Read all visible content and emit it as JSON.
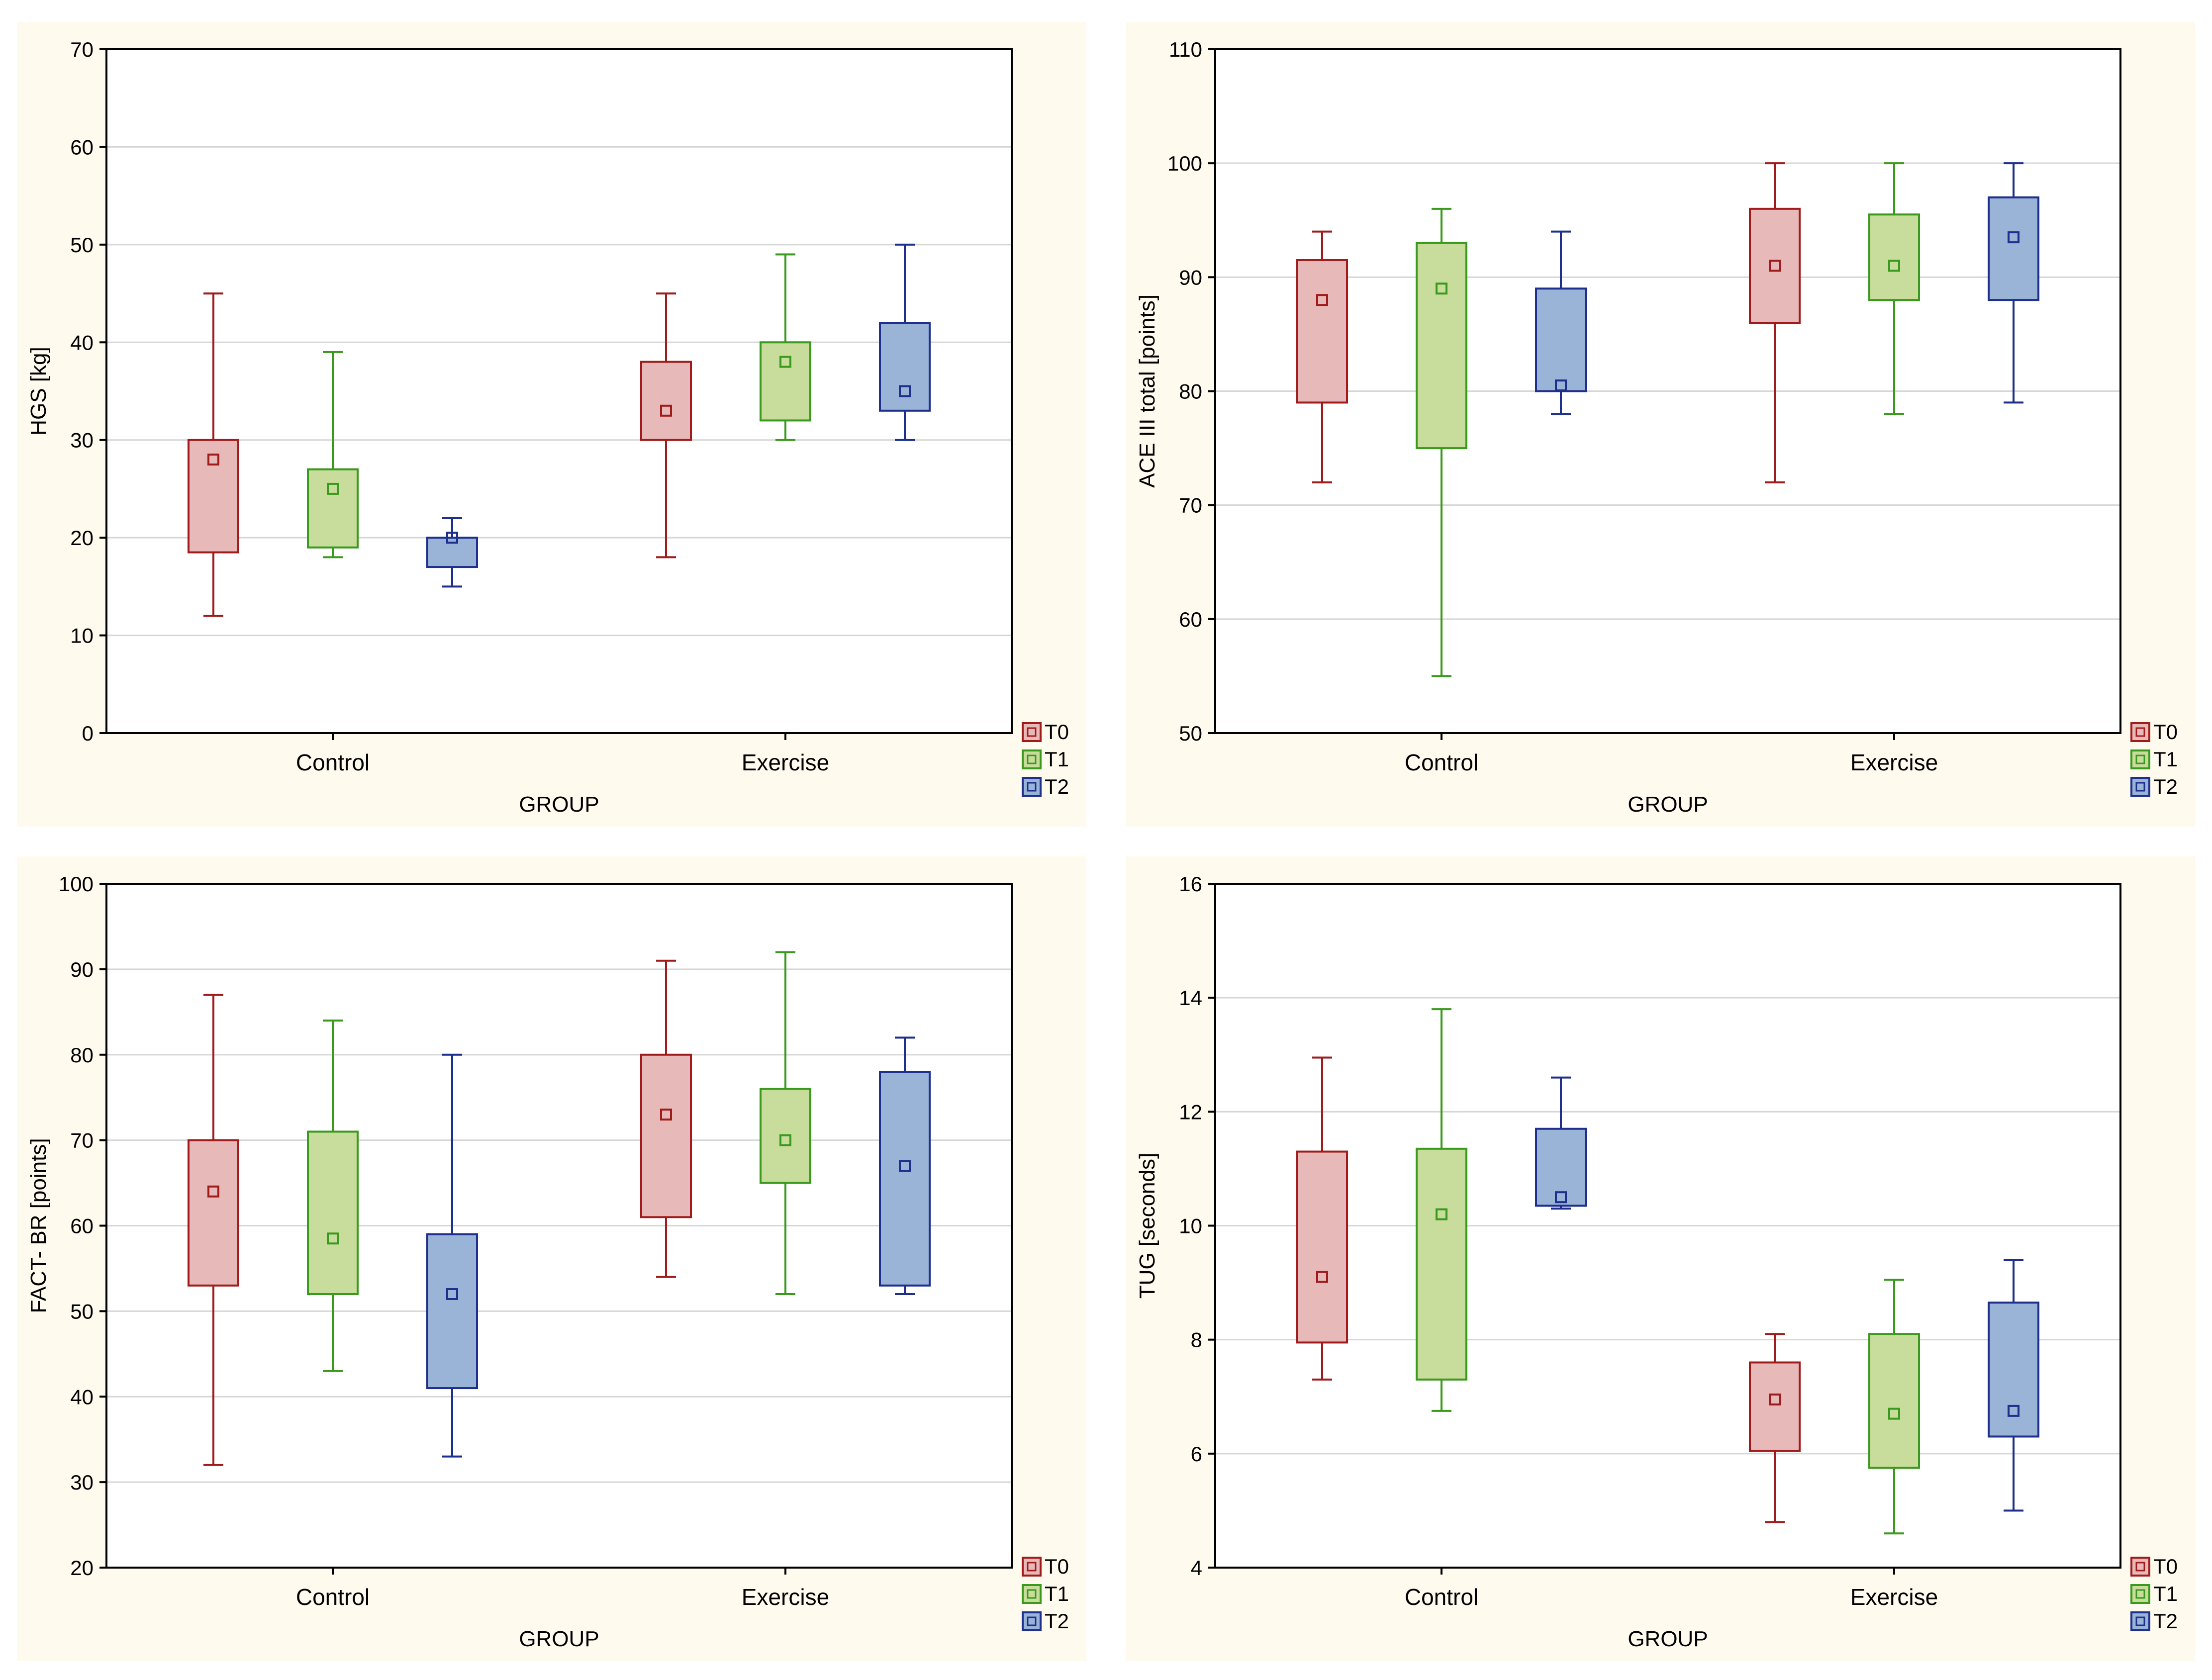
{
  "chart_data": [
    {
      "type": "box",
      "ylabel": "HGS [kg]",
      "xlabel": "GROUP",
      "categories": [
        "Control",
        "Exercise"
      ],
      "ylim": [
        0,
        70
      ],
      "yticks": [
        0,
        10,
        20,
        30,
        40,
        50,
        60,
        70
      ],
      "tick_labels": [
        "0",
        "10",
        "20",
        "30",
        "40",
        "50",
        "60",
        "70"
      ],
      "grid": true,
      "legend": "bottom-right",
      "series": [
        {
          "name": "T0",
          "color": "#a01c1c",
          "fill": "#e8b9b9",
          "boxes": [
            {
              "min": 12,
              "q1": 18.5,
              "median": 28,
              "q3": 30,
              "max": 45
            },
            {
              "min": 18,
              "q1": 30,
              "median": 33,
              "q3": 38,
              "max": 45
            }
          ]
        },
        {
          "name": "T1",
          "color": "#3a9a1e",
          "fill": "#c8dc9c",
          "boxes": [
            {
              "min": 18,
              "q1": 19,
              "median": 25,
              "q3": 27,
              "max": 39
            },
            {
              "min": 30,
              "q1": 32,
              "median": 38,
              "q3": 40,
              "max": 49
            }
          ]
        },
        {
          "name": "T2",
          "color": "#1e2f8c",
          "fill": "#9ab4d8",
          "boxes": [
            {
              "min": 15,
              "q1": 17,
              "median": 20,
              "q3": 20,
              "max": 22
            },
            {
              "min": 30,
              "q1": 33,
              "median": 35,
              "q3": 42,
              "max": 50
            }
          ]
        }
      ]
    },
    {
      "type": "box",
      "ylabel": "ACE III total [points]",
      "xlabel": "GROUP",
      "categories": [
        "Control",
        "Exercise"
      ],
      "ylim": [
        50,
        110
      ],
      "yticks": [
        50,
        60,
        70,
        80,
        90,
        100,
        110
      ],
      "tick_labels": [
        "50",
        "60",
        "70",
        "80",
        "90",
        "100",
        "110"
      ],
      "grid": true,
      "legend": "bottom-right",
      "series": [
        {
          "name": "T0",
          "color": "#a01c1c",
          "fill": "#e8b9b9",
          "boxes": [
            {
              "min": 72,
              "q1": 79,
              "median": 88,
              "q3": 91.5,
              "max": 94
            },
            {
              "min": 72,
              "q1": 86,
              "median": 91,
              "q3": 96,
              "max": 100
            }
          ]
        },
        {
          "name": "T1",
          "color": "#3a9a1e",
          "fill": "#c8dc9c",
          "boxes": [
            {
              "min": 55,
              "q1": 75,
              "median": 89,
              "q3": 93,
              "max": 96
            },
            {
              "min": 78,
              "q1": 88,
              "median": 91,
              "q3": 95.5,
              "max": 100
            }
          ]
        },
        {
          "name": "T2",
          "color": "#1e2f8c",
          "fill": "#9ab4d8",
          "boxes": [
            {
              "min": 78,
              "q1": 80,
              "median": 80.5,
              "q3": 89,
              "max": 94
            },
            {
              "min": 79,
              "q1": 88,
              "median": 93.5,
              "q3": 97,
              "max": 100
            }
          ]
        }
      ]
    },
    {
      "type": "box",
      "ylabel": "FACT- BR [points]",
      "xlabel": "GROUP",
      "categories": [
        "Control",
        "Exercise"
      ],
      "ylim": [
        20,
        100
      ],
      "yticks": [
        20,
        30,
        40,
        50,
        60,
        70,
        80,
        90,
        100
      ],
      "tick_labels": [
        "20",
        "30",
        "40",
        "50",
        "60",
        "70",
        "80",
        "90",
        "100"
      ],
      "grid": true,
      "legend": "bottom-right",
      "series": [
        {
          "name": "T0",
          "color": "#a01c1c",
          "fill": "#e8b9b9",
          "boxes": [
            {
              "min": 32,
              "q1": 53,
              "median": 64,
              "q3": 70,
              "max": 87
            },
            {
              "min": 54,
              "q1": 61,
              "median": 73,
              "q3": 80,
              "max": 91
            }
          ]
        },
        {
          "name": "T1",
          "color": "#3a9a1e",
          "fill": "#c8dc9c",
          "boxes": [
            {
              "min": 43,
              "q1": 52,
              "median": 58.5,
              "q3": 71,
              "max": 84
            },
            {
              "min": 52,
              "q1": 65,
              "median": 70,
              "q3": 76,
              "max": 92
            }
          ]
        },
        {
          "name": "T2",
          "color": "#1e2f8c",
          "fill": "#9ab4d8",
          "boxes": [
            {
              "min": 33,
              "q1": 41,
              "median": 52,
              "q3": 59,
              "max": 80
            },
            {
              "min": 52,
              "q1": 53,
              "median": 67,
              "q3": 78,
              "max": 82
            }
          ]
        }
      ]
    },
    {
      "type": "box",
      "ylabel": "TUG [seconds]",
      "xlabel": "GROUP",
      "categories": [
        "Control",
        "Exercise"
      ],
      "ylim": [
        4,
        16
      ],
      "yticks": [
        4,
        6,
        8,
        10,
        12,
        14,
        16
      ],
      "tick_labels": [
        "4",
        "6",
        "8",
        "10",
        "12",
        "14",
        "16"
      ],
      "grid": true,
      "legend": "bottom-right",
      "series": [
        {
          "name": "T0",
          "color": "#a01c1c",
          "fill": "#e8b9b9",
          "boxes": [
            {
              "min": 7.3,
              "q1": 7.95,
              "median": 9.1,
              "q3": 11.3,
              "max": 12.95
            },
            {
              "min": 4.8,
              "q1": 6.05,
              "median": 6.95,
              "q3": 7.6,
              "max": 8.1
            }
          ]
        },
        {
          "name": "T1",
          "color": "#3a9a1e",
          "fill": "#c8dc9c",
          "boxes": [
            {
              "min": 6.75,
              "q1": 7.3,
              "median": 10.2,
              "q3": 11.35,
              "max": 13.8
            },
            {
              "min": 4.6,
              "q1": 5.75,
              "median": 6.7,
              "q3": 8.1,
              "max": 9.05
            }
          ]
        },
        {
          "name": "T2",
          "color": "#1e2f8c",
          "fill": "#9ab4d8",
          "boxes": [
            {
              "min": 10.3,
              "q1": 10.35,
              "median": 10.5,
              "q3": 11.7,
              "max": 12.6
            },
            {
              "min": 5.0,
              "q1": 6.3,
              "median": 6.75,
              "q3": 8.65,
              "max": 9.4
            }
          ]
        }
      ]
    }
  ]
}
